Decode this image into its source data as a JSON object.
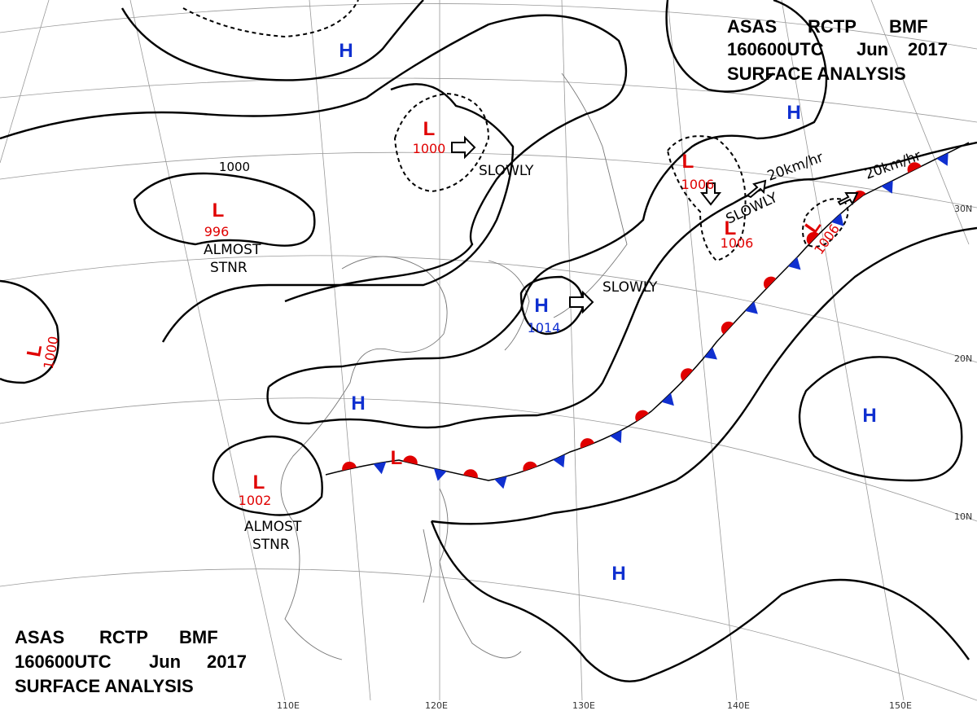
{
  "header": {
    "title": [
      "ASAS",
      "RCTP",
      "BMF"
    ],
    "time": [
      "160600UTC",
      "Jun",
      "2017"
    ],
    "subtitle": "SURFACE ANALYSIS"
  },
  "systems": [
    {
      "symbol": "L",
      "pressure": 1000
    },
    {
      "symbol": "L",
      "pressure": 996
    },
    {
      "symbol": "L",
      "pressure": 1000
    },
    {
      "symbol": "L",
      "pressure": 1006
    },
    {
      "symbol": "L",
      "pressure": 1006
    },
    {
      "symbol": "L",
      "pressure": 1006
    },
    {
      "symbol": "L",
      "pressure": 1002
    },
    {
      "symbol": "L"
    },
    {
      "symbol": "H",
      "pressure": 1014
    },
    {
      "symbol": "H"
    },
    {
      "symbol": "H"
    },
    {
      "symbol": "H"
    },
    {
      "symbol": "H"
    },
    {
      "symbol": "H"
    }
  ],
  "motions": [
    "SLOWLY",
    "SLOWLY",
    "SLOWLY",
    "20km/hr",
    "20km/hr"
  ],
  "stationary_notes": [
    [
      "ALMOST",
      "STNR"
    ],
    [
      "ALMOST",
      "STNR"
    ]
  ],
  "isobar_labels": [
    1000
  ],
  "latitudes": [
    "30N",
    "20N",
    "10N"
  ],
  "longitudes": [
    "110E",
    "120E",
    "130E",
    "140E",
    "150E"
  ]
}
